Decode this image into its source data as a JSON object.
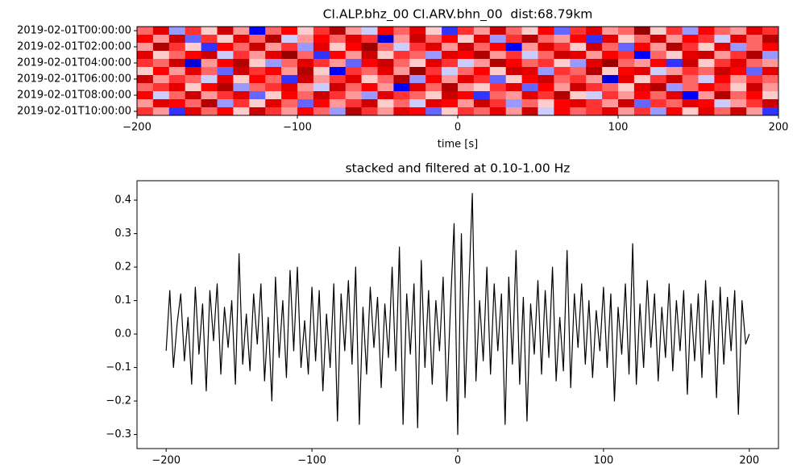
{
  "chart_data": [
    {
      "type": "heatmap",
      "title": "CI.ALP.bhz_00 CI.ARV.bhn_00  dist:68.79km",
      "xlabel": "time [s]",
      "xlim": [
        -200,
        200
      ],
      "xticks": [
        {
          "value": -200,
          "label": "−200"
        },
        {
          "value": -100,
          "label": "−100"
        },
        0,
        100,
        200
      ],
      "rows": [
        "2019-02-01T00:00:00",
        null,
        "2019-02-01T02:00:00",
        null,
        "2019-02-01T04:00:00",
        null,
        "2019-02-01T06:00:00",
        null,
        "2019-02-01T08:00:00",
        null,
        "2019-02-01T10:00:00"
      ],
      "colormap": "seismic",
      "zlim": [
        -1,
        1
      ],
      "values": [
        [
          0.3,
          0.6,
          -0.2,
          0.4,
          0.1,
          0.7,
          0.2,
          -0.5,
          0.3,
          0.5,
          0.1,
          0.4,
          0.8,
          0.2,
          -0.1,
          0.5,
          0.3,
          0.6,
          0.1,
          -0.4,
          0.4,
          0.2,
          0.7,
          0.3,
          0.1,
          0.5,
          -0.3,
          0.4,
          0.6,
          0.2,
          0.3,
          0.9,
          0.1,
          0.4,
          -0.2,
          0.5,
          0.3,
          0.2,
          0.6,
          0.4
        ],
        [
          0.5,
          0.2,
          0.7,
          -0.3,
          0.4,
          0.1,
          0.6,
          0.3,
          0.8,
          -0.1,
          0.2,
          0.5,
          0.3,
          0.6,
          0.4,
          -0.6,
          0.2,
          0.7,
          0.3,
          0.5,
          0.1,
          0.6,
          -0.2,
          0.4,
          0.8,
          0.3,
          0.2,
          0.5,
          -0.4,
          0.6,
          0.1,
          0.3,
          0.7,
          0.2,
          0.5,
          0.4,
          -0.1,
          0.6,
          0.3,
          0.8
        ],
        [
          0.2,
          0.8,
          0.4,
          0.1,
          -0.4,
          0.5,
          0.3,
          0.7,
          0.2,
          0.4,
          -0.2,
          0.6,
          0.1,
          0.5,
          0.9,
          0.3,
          -0.1,
          0.4,
          0.6,
          0.2,
          0.7,
          0.3,
          0.5,
          -0.5,
          0.2,
          0.6,
          0.4,
          0.1,
          0.7,
          0.3,
          -0.3,
          0.5,
          0.2,
          0.8,
          0.4,
          0.1,
          0.6,
          -0.2,
          0.3,
          0.5
        ],
        [
          0.6,
          0.1,
          0.3,
          0.5,
          0.7,
          -0.1,
          0.4,
          0.2,
          0.6,
          0.9,
          0.3,
          -0.4,
          0.5,
          0.2,
          0.7,
          0.1,
          0.4,
          0.3,
          -0.2,
          0.6,
          0.5,
          0.8,
          0.2,
          0.4,
          -0.1,
          0.3,
          0.7,
          0.6,
          0.2,
          0.5,
          0.4,
          -0.5,
          0.3,
          0.1,
          0.6,
          0.7,
          0.2,
          0.4,
          0.8,
          -0.2
        ],
        [
          0.4,
          0.3,
          0.7,
          -0.6,
          0.2,
          0.5,
          0.8,
          0.1,
          -0.2,
          0.3,
          0.6,
          0.4,
          0.2,
          -0.3,
          0.5,
          0.7,
          0.3,
          0.1,
          0.6,
          0.4,
          -0.1,
          0.2,
          0.8,
          0.5,
          0.3,
          0.4,
          0.1,
          -0.2,
          0.6,
          0.9,
          0.3,
          0.2,
          0.5,
          -0.4,
          0.7,
          0.1,
          0.4,
          0.6,
          0.3,
          0.2
        ],
        [
          0.1,
          0.5,
          0.2,
          0.6,
          0.3,
          -0.3,
          0.7,
          0.4,
          0.5,
          0.2,
          0.8,
          0.1,
          -0.5,
          0.4,
          0.3,
          0.6,
          0.2,
          0.9,
          0.4,
          -0.1,
          0.3,
          0.5,
          0.1,
          0.7,
          0.6,
          -0.2,
          0.4,
          0.3,
          0.8,
          0.1,
          0.5,
          0.6,
          -0.1,
          0.2,
          0.4,
          0.3,
          0.7,
          0.5,
          -0.3,
          0.6
        ],
        [
          0.7,
          0.2,
          0.4,
          0.3,
          -0.1,
          0.6,
          0.1,
          0.5,
          0.3,
          -0.4,
          0.7,
          0.2,
          0.4,
          0.6,
          0.1,
          0.3,
          0.8,
          -0.2,
          0.5,
          0.2,
          0.6,
          0.4,
          -0.3,
          0.1,
          0.5,
          0.7,
          0.3,
          0.4,
          0.2,
          -0.6,
          0.6,
          0.1,
          0.4,
          0.7,
          0.3,
          -0.1,
          0.5,
          0.2,
          0.4,
          0.3
        ],
        [
          0.3,
          0.4,
          0.6,
          0.1,
          0.5,
          0.8,
          -0.2,
          0.3,
          0.4,
          0.6,
          0.2,
          -0.1,
          0.7,
          0.3,
          0.5,
          0.2,
          -0.5,
          0.6,
          0.3,
          0.8,
          0.2,
          0.1,
          0.4,
          0.6,
          -0.3,
          0.5,
          0.2,
          0.7,
          0.4,
          0.3,
          0.1,
          0.6,
          0.8,
          -0.2,
          0.3,
          0.5,
          0.4,
          0.1,
          0.7,
          0.2
        ],
        [
          0.5,
          -0.1,
          0.3,
          0.7,
          0.2,
          0.4,
          0.6,
          -0.3,
          0.1,
          0.5,
          0.3,
          0.7,
          0.4,
          0.2,
          -0.2,
          0.6,
          0.4,
          0.3,
          0.1,
          0.7,
          0.5,
          -0.4,
          0.3,
          0.2,
          0.6,
          0.4,
          0.8,
          0.1,
          -0.1,
          0.4,
          0.2,
          0.5,
          0.3,
          0.6,
          -0.5,
          0.2,
          0.8,
          0.3,
          0.5,
          0.1
        ],
        [
          0.2,
          0.6,
          0.5,
          0.3,
          0.8,
          -0.2,
          0.4,
          0.1,
          0.6,
          0.3,
          -0.3,
          0.5,
          0.2,
          0.4,
          0.7,
          0.1,
          0.3,
          -0.1,
          0.6,
          0.5,
          0.2,
          0.7,
          0.4,
          -0.2,
          0.3,
          0.1,
          0.5,
          0.6,
          0.4,
          0.2,
          0.7,
          -0.3,
          0.4,
          0.3,
          0.6,
          0.5,
          -0.1,
          0.2,
          0.4,
          0.7
        ],
        [
          0.4,
          0.2,
          -0.4,
          0.6,
          0.3,
          0.5,
          0.1,
          0.7,
          0.4,
          0.2,
          0.5,
          0.3,
          -0.2,
          0.8,
          0.4,
          0.2,
          0.6,
          0.5,
          -0.3,
          0.1,
          0.4,
          0.3,
          0.6,
          0.2,
          0.7,
          -0.1,
          0.5,
          0.3,
          0.4,
          0.6,
          0.2,
          0.4,
          -0.2,
          0.5,
          0.1,
          0.6,
          0.3,
          0.7,
          0.2,
          -0.4
        ]
      ]
    },
    {
      "type": "line",
      "title": "stacked and filtered at 0.10-1.00 Hz",
      "color": "#000000",
      "xlim": [
        -220,
        220
      ],
      "ylim": [
        -0.342,
        0.458
      ],
      "xticks": [
        {
          "value": -200,
          "label": "−200"
        },
        {
          "value": -100,
          "label": "−100"
        },
        0,
        100,
        200
      ],
      "yticks": [
        {
          "value": -0.3,
          "label": "−0.3"
        },
        {
          "value": -0.2,
          "label": "−0.2"
        },
        {
          "value": -0.1,
          "label": "−0.1"
        },
        {
          "value": 0,
          "label": "0.0"
        },
        0.1,
        0.2,
        0.3,
        0.4
      ],
      "x": [
        -200,
        -197.5,
        -195,
        -192.5,
        -190,
        -187.5,
        -185,
        -182.5,
        -180,
        -177.5,
        -175,
        -172.5,
        -170,
        -167.5,
        -165,
        -162.5,
        -160,
        -157.5,
        -155,
        -152.5,
        -150,
        -147.5,
        -145,
        -142.5,
        -140,
        -137.5,
        -135,
        -132.5,
        -130,
        -127.5,
        -125,
        -122.5,
        -120,
        -117.5,
        -115,
        -112.5,
        -110,
        -107.5,
        -105,
        -102.5,
        -100,
        -97.5,
        -95,
        -92.5,
        -90,
        -87.5,
        -85,
        -82.5,
        -80,
        -77.5,
        -75,
        -72.5,
        -70,
        -67.5,
        -65,
        -62.5,
        -60,
        -57.5,
        -55,
        -52.5,
        -50,
        -47.5,
        -45,
        -42.5,
        -40,
        -37.5,
        -35,
        -32.5,
        -30,
        -27.5,
        -25,
        -22.5,
        -20,
        -17.5,
        -15,
        -12.5,
        -10,
        -7.5,
        -5,
        -2.5,
        0,
        2.5,
        5,
        7.5,
        10,
        12.5,
        15,
        17.5,
        20,
        22.5,
        25,
        27.5,
        30,
        32.5,
        35,
        37.5,
        40,
        42.5,
        45,
        47.5,
        50,
        52.5,
        55,
        57.5,
        60,
        62.5,
        65,
        67.5,
        70,
        72.5,
        75,
        77.5,
        80,
        82.5,
        85,
        87.5,
        90,
        92.5,
        95,
        97.5,
        100,
        102.5,
        105,
        107.5,
        110,
        112.5,
        115,
        117.5,
        120,
        122.5,
        125,
        127.5,
        130,
        132.5,
        135,
        137.5,
        140,
        142.5,
        145,
        147.5,
        150,
        152.5,
        155,
        157.5,
        160,
        162.5,
        165,
        167.5,
        170,
        172.5,
        175,
        177.5,
        180,
        182.5,
        185,
        187.5,
        190,
        192.5,
        195,
        197.5,
        200
      ],
      "values": [
        -0.05,
        0.13,
        -0.1,
        0.03,
        0.12,
        -0.08,
        0.05,
        -0.15,
        0.14,
        -0.06,
        0.09,
        -0.17,
        0.13,
        -0.02,
        0.15,
        -0.12,
        0.08,
        -0.04,
        0.1,
        -0.15,
        0.24,
        -0.09,
        0.06,
        -0.11,
        0.12,
        -0.03,
        0.15,
        -0.14,
        0.05,
        -0.2,
        0.17,
        -0.07,
        0.1,
        -0.13,
        0.19,
        -0.05,
        0.2,
        -0.1,
        0.04,
        -0.12,
        0.14,
        -0.08,
        0.13,
        -0.17,
        0.06,
        -0.1,
        0.15,
        -0.26,
        0.12,
        -0.05,
        0.16,
        -0.09,
        0.2,
        -0.27,
        0.08,
        -0.12,
        0.14,
        -0.04,
        0.11,
        -0.16,
        0.09,
        -0.07,
        0.2,
        -0.11,
        0.26,
        -0.27,
        0.12,
        -0.06,
        0.15,
        -0.28,
        0.22,
        -0.1,
        0.13,
        -0.15,
        0.1,
        -0.05,
        0.17,
        -0.2,
        0.08,
        0.33,
        -0.3,
        0.3,
        -0.19,
        0.12,
        0.42,
        -0.14,
        0.1,
        -0.08,
        0.2,
        -0.12,
        0.15,
        -0.05,
        0.12,
        -0.27,
        0.17,
        -0.09,
        0.25,
        -0.15,
        0.11,
        -0.26,
        0.09,
        -0.06,
        0.16,
        -0.12,
        0.13,
        -0.07,
        0.2,
        -0.14,
        0.05,
        -0.11,
        0.25,
        -0.16,
        0.12,
        -0.04,
        0.15,
        -0.09,
        0.1,
        -0.13,
        0.07,
        -0.05,
        0.14,
        -0.1,
        0.12,
        -0.2,
        0.08,
        -0.06,
        0.15,
        -0.12,
        0.27,
        -0.15,
        0.09,
        -0.1,
        0.16,
        -0.04,
        0.12,
        -0.14,
        0.08,
        -0.07,
        0.15,
        -0.11,
        0.1,
        -0.05,
        0.13,
        -0.18,
        0.09,
        -0.08,
        0.12,
        -0.13,
        0.16,
        -0.06,
        0.1,
        -0.19,
        0.14,
        -0.09,
        0.11,
        -0.05,
        0.13,
        -0.24,
        0.1,
        -0.03,
        0
      ]
    }
  ]
}
